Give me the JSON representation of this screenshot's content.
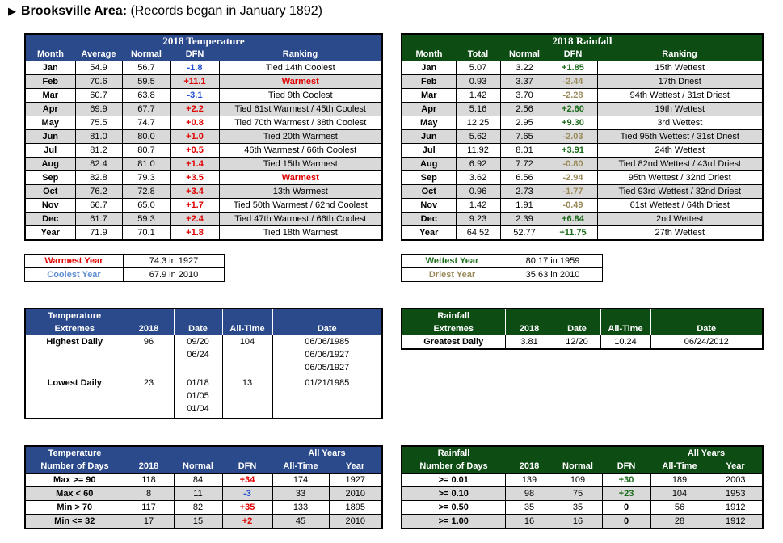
{
  "header": {
    "area": "Brooksville Area:",
    "records_note": "(Records began in January 1892)"
  },
  "temp_table": {
    "title": "2018 Temperature",
    "cols": [
      "Month",
      "Average",
      "Normal",
      "DFN",
      "Ranking"
    ],
    "rows": [
      {
        "month": "Jan",
        "avg": "54.9",
        "normal": "56.7",
        "dfn": "-1.8",
        "rank": "Tied 14th Coolest"
      },
      {
        "month": "Feb",
        "avg": "70.6",
        "normal": "59.5",
        "dfn": "+11.1",
        "rank": "Warmest"
      },
      {
        "month": "Mar",
        "avg": "60.7",
        "normal": "63.8",
        "dfn": "-3.1",
        "rank": "Tied 9th Coolest"
      },
      {
        "month": "Apr",
        "avg": "69.9",
        "normal": "67.7",
        "dfn": "+2.2",
        "rank": "Tied 61st Warmest / 45th Coolest"
      },
      {
        "month": "May",
        "avg": "75.5",
        "normal": "74.7",
        "dfn": "+0.8",
        "rank": "Tied 70th Warmest / 38th Coolest"
      },
      {
        "month": "Jun",
        "avg": "81.0",
        "normal": "80.0",
        "dfn": "+1.0",
        "rank": "Tied 20th Warmest"
      },
      {
        "month": "Jul",
        "avg": "81.2",
        "normal": "80.7",
        "dfn": "+0.5",
        "rank": "46th Warmest / 66th Coolest"
      },
      {
        "month": "Aug",
        "avg": "82.4",
        "normal": "81.0",
        "dfn": "+1.4",
        "rank": "Tied 15th Warmest"
      },
      {
        "month": "Sep",
        "avg": "82.8",
        "normal": "79.3",
        "dfn": "+3.5",
        "rank": "Warmest"
      },
      {
        "month": "Oct",
        "avg": "76.2",
        "normal": "72.8",
        "dfn": "+3.4",
        "rank": "13th Warmest"
      },
      {
        "month": "Nov",
        "avg": "66.7",
        "normal": "65.0",
        "dfn": "+1.7",
        "rank": "Tied 50th Warmest / 62nd Coolest"
      },
      {
        "month": "Dec",
        "avg": "61.7",
        "normal": "59.3",
        "dfn": "+2.4",
        "rank": "Tied 47th Warmest / 66th Coolest"
      },
      {
        "month": "Year",
        "avg": "71.9",
        "normal": "70.1",
        "dfn": "+1.8",
        "rank": "Tied 18th Warmest"
      }
    ]
  },
  "rain_table": {
    "title": "2018 Rainfall",
    "cols": [
      "Month",
      "Total",
      "Normal",
      "DFN",
      "Ranking"
    ],
    "rows": [
      {
        "month": "Jan",
        "total": "5.07",
        "normal": "3.22",
        "dfn": "+1.85",
        "rank": "15th Wettest"
      },
      {
        "month": "Feb",
        "total": "0.93",
        "normal": "3.37",
        "dfn": "-2.44",
        "rank": "17th Driest"
      },
      {
        "month": "Mar",
        "total": "1.42",
        "normal": "3.70",
        "dfn": "-2.28",
        "rank": "94th Wettest / 31st Driest"
      },
      {
        "month": "Apr",
        "total": "5.16",
        "normal": "2.56",
        "dfn": "+2.60",
        "rank": "19th Wettest"
      },
      {
        "month": "May",
        "total": "12.25",
        "normal": "2.95",
        "dfn": "+9.30",
        "rank": "3rd Wettest"
      },
      {
        "month": "Jun",
        "total": "5.62",
        "normal": "7.65",
        "dfn": "-2.03",
        "rank": "Tied 95th Wettest / 31st Driest"
      },
      {
        "month": "Jul",
        "total": "11.92",
        "normal": "8.01",
        "dfn": "+3.91",
        "rank": "24th Wettest"
      },
      {
        "month": "Aug",
        "total": "6.92",
        "normal": "7.72",
        "dfn": "-0.80",
        "rank": "Tied 82nd Wettest / 43rd Driest"
      },
      {
        "month": "Sep",
        "total": "3.62",
        "normal": "6.56",
        "dfn": "-2.94",
        "rank": "95th Wettest / 32nd Driest"
      },
      {
        "month": "Oct",
        "total": "0.96",
        "normal": "2.73",
        "dfn": "-1.77",
        "rank": "Tied 93rd Wettest / 32nd Driest"
      },
      {
        "month": "Nov",
        "total": "1.42",
        "normal": "1.91",
        "dfn": "-0.49",
        "rank": "61st Wettest / 64th Driest"
      },
      {
        "month": "Dec",
        "total": "9.23",
        "normal": "2.39",
        "dfn": "+6.84",
        "rank": "2nd Wettest"
      },
      {
        "month": "Year",
        "total": "64.52",
        "normal": "52.77",
        "dfn": "+11.75",
        "rank": "27th Wettest"
      }
    ]
  },
  "temp_years": {
    "warmest_label": "Warmest Year",
    "warmest_value": "74.3 in 1927",
    "coolest_label": "Coolest Year",
    "coolest_value": "67.9 in 2010"
  },
  "rain_years": {
    "wettest_label": "Wettest Year",
    "wettest_value": "80.17 in 1959",
    "driest_label": "Driest Year",
    "driest_value": "35.63 in 2010"
  },
  "temp_extremes": {
    "title_line1": "Temperature",
    "title_line2": "Extremes",
    "cols": [
      "2018",
      "Date",
      "All-Time",
      "Date"
    ],
    "high_label": "Highest Daily",
    "high_2018": "96",
    "high_dates": [
      "09/20",
      "06/24"
    ],
    "high_alltime": "104",
    "high_alltime_dates": [
      "06/06/1985",
      "06/06/1927",
      "06/05/1927"
    ],
    "low_label": "Lowest Daily",
    "low_2018": "23",
    "low_dates": [
      "01/18",
      "01/05",
      "01/04"
    ],
    "low_alltime": "13",
    "low_alltime_dates": [
      "01/21/1985"
    ]
  },
  "rain_extremes": {
    "title_line1": "Rainfall",
    "title_line2": "Extremes",
    "cols": [
      "2018",
      "Date",
      "All-Time",
      "Date"
    ],
    "label": "Greatest Daily",
    "val_2018": "3.81",
    "date_2018": "12/20",
    "alltime": "10.24",
    "alltime_date": "06/24/2012"
  },
  "temp_days": {
    "title_line1": "Temperature",
    "title_line2": "Number of Days",
    "all_years": "All Years",
    "cols": [
      "2018",
      "Normal",
      "DFN",
      "All-Time",
      "Year"
    ],
    "rows": [
      {
        "label": "Max >= 90",
        "y2018": "118",
        "normal": "84",
        "dfn": "+34",
        "alltime": "174",
        "year": "1927"
      },
      {
        "label": "Max < 60",
        "y2018": "8",
        "normal": "11",
        "dfn": "-3",
        "alltime": "33",
        "year": "2010"
      },
      {
        "label": "Min > 70",
        "y2018": "117",
        "normal": "82",
        "dfn": "+35",
        "alltime": "133",
        "year": "1895"
      },
      {
        "label": "Min <= 32",
        "y2018": "17",
        "normal": "15",
        "dfn": "+2",
        "alltime": "45",
        "year": "2010"
      }
    ]
  },
  "rain_days": {
    "title_line1": "Rainfall",
    "title_line2": "Number of Days",
    "all_years": "All Years",
    "cols": [
      "2018",
      "Normal",
      "DFN",
      "All-Time",
      "Year"
    ],
    "rows": [
      {
        "label": ">= 0.01",
        "y2018": "139",
        "normal": "109",
        "dfn": "+30",
        "alltime": "189",
        "year": "2003"
      },
      {
        "label": ">= 0.10",
        "y2018": "98",
        "normal": "75",
        "dfn": "+23",
        "alltime": "104",
        "year": "1953"
      },
      {
        "label": ">= 0.50",
        "y2018": "35",
        "normal": "35",
        "dfn": "0",
        "alltime": "56",
        "year": "1912"
      },
      {
        "label": ">= 1.00",
        "y2018": "16",
        "normal": "16",
        "dfn": "0",
        "alltime": "28",
        "year": "1912"
      }
    ]
  },
  "colors": {
    "blue_header": "#2a4a8c",
    "green_header": "#0d4d14",
    "warm_red": "#e00000",
    "wet_green": "#1a6b1a",
    "dry_tan": "#9a8a5a",
    "cool_blue": "#5f8fd1"
  }
}
